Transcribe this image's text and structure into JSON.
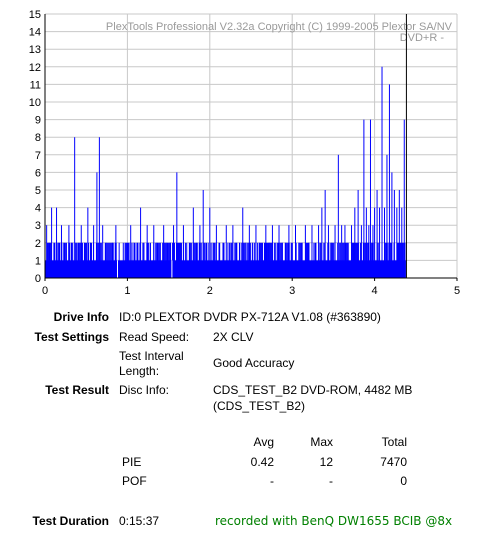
{
  "chart_data": {
    "type": "bar",
    "watermark_line1": "PlexTools Professional V2.32a Copyright (C) 1999-2005 Plextor SA/NV",
    "watermark_line2": "DVD+R  -",
    "xlim": [
      0,
      5
    ],
    "ylim": [
      0,
      15
    ],
    "x_ticks": [
      "0",
      "1",
      "2",
      "3",
      "4",
      "5"
    ],
    "y_ticks": [
      "0",
      "1",
      "2",
      "3",
      "4",
      "5",
      "6",
      "7",
      "8",
      "9",
      "10",
      "11",
      "12",
      "13",
      "14",
      "15"
    ],
    "grid": true,
    "bar_color": "#0000ff",
    "end_marker_x": 4.38,
    "data_end_x": 4.38,
    "base_level": 1,
    "spikes": [
      [
        0.02,
        3
      ],
      [
        0.05,
        2
      ],
      [
        0.08,
        4
      ],
      [
        0.11,
        2
      ],
      [
        0.14,
        4
      ],
      [
        0.17,
        2
      ],
      [
        0.2,
        3
      ],
      [
        0.23,
        2
      ],
      [
        0.26,
        2
      ],
      [
        0.29,
        3
      ],
      [
        0.32,
        2
      ],
      [
        0.36,
        8
      ],
      [
        0.4,
        2
      ],
      [
        0.44,
        3
      ],
      [
        0.48,
        2
      ],
      [
        0.52,
        4
      ],
      [
        0.55,
        2
      ],
      [
        0.59,
        3
      ],
      [
        0.63,
        6
      ],
      [
        0.66,
        8
      ],
      [
        0.7,
        3
      ],
      [
        0.74,
        2
      ],
      [
        0.78,
        2
      ],
      [
        0.82,
        2
      ],
      [
        0.86,
        3
      ],
      [
        0.9,
        2
      ],
      [
        0.95,
        2
      ],
      [
        1.0,
        2
      ],
      [
        1.04,
        3
      ],
      [
        1.08,
        2
      ],
      [
        1.12,
        2
      ],
      [
        1.16,
        4
      ],
      [
        1.2,
        2
      ],
      [
        1.24,
        3
      ],
      [
        1.28,
        2
      ],
      [
        1.32,
        3
      ],
      [
        1.36,
        2
      ],
      [
        1.4,
        2
      ],
      [
        1.44,
        3
      ],
      [
        1.48,
        2
      ],
      [
        1.52,
        2
      ],
      [
        1.56,
        3
      ],
      [
        1.6,
        6
      ],
      [
        1.64,
        2
      ],
      [
        1.68,
        3
      ],
      [
        1.72,
        2
      ],
      [
        1.76,
        2
      ],
      [
        1.8,
        4
      ],
      [
        1.84,
        2
      ],
      [
        1.88,
        3
      ],
      [
        1.92,
        5
      ],
      [
        1.96,
        2
      ],
      [
        2.0,
        4
      ],
      [
        2.04,
        2
      ],
      [
        2.08,
        3
      ],
      [
        2.12,
        2
      ],
      [
        2.16,
        2
      ],
      [
        2.2,
        3
      ],
      [
        2.24,
        2
      ],
      [
        2.28,
        3
      ],
      [
        2.32,
        2
      ],
      [
        2.36,
        2
      ],
      [
        2.4,
        4
      ],
      [
        2.44,
        2
      ],
      [
        2.48,
        3
      ],
      [
        2.52,
        2
      ],
      [
        2.56,
        3
      ],
      [
        2.6,
        2
      ],
      [
        2.64,
        2
      ],
      [
        2.68,
        3
      ],
      [
        2.72,
        2
      ],
      [
        2.76,
        3
      ],
      [
        2.8,
        2
      ],
      [
        2.84,
        3
      ],
      [
        2.88,
        2
      ],
      [
        2.92,
        2
      ],
      [
        2.96,
        3
      ],
      [
        3.0,
        2
      ],
      [
        3.04,
        3
      ],
      [
        3.08,
        2
      ],
      [
        3.12,
        2
      ],
      [
        3.16,
        3
      ],
      [
        3.2,
        2
      ],
      [
        3.24,
        3
      ],
      [
        3.28,
        2
      ],
      [
        3.32,
        3
      ],
      [
        3.36,
        4
      ],
      [
        3.4,
        5
      ],
      [
        3.44,
        3
      ],
      [
        3.48,
        2
      ],
      [
        3.52,
        3
      ],
      [
        3.56,
        7
      ],
      [
        3.6,
        3
      ],
      [
        3.64,
        3
      ],
      [
        3.68,
        2
      ],
      [
        3.72,
        3
      ],
      [
        3.76,
        4
      ],
      [
        3.8,
        5
      ],
      [
        3.84,
        3
      ],
      [
        3.87,
        9
      ],
      [
        3.9,
        4
      ],
      [
        3.93,
        3
      ],
      [
        3.95,
        9
      ],
      [
        3.98,
        3
      ],
      [
        4.0,
        4
      ],
      [
        4.03,
        5
      ],
      [
        4.06,
        4
      ],
      [
        4.09,
        12
      ],
      [
        4.12,
        4
      ],
      [
        4.15,
        7
      ],
      [
        4.18,
        11
      ],
      [
        4.21,
        6
      ],
      [
        4.24,
        5
      ],
      [
        4.27,
        4
      ],
      [
        4.3,
        5
      ],
      [
        4.33,
        4
      ],
      [
        4.36,
        9
      ]
    ]
  },
  "info": {
    "drive_info_label": "Drive Info",
    "drive_info_value": "ID:0 PLEXTOR DVDR PX-712A V1.08 (#363890)",
    "test_settings_label": "Test Settings",
    "read_speed_label": "Read Speed:",
    "read_speed_value": "2X CLV",
    "interval_label_1": "Test Interval",
    "interval_label_2": "Length:",
    "interval_value": "Good Accuracy",
    "test_result_label": "Test Result",
    "disc_info_label": "Disc Info:",
    "disc_info_value_1": "CDS_TEST_B2 DVD-ROM, 4482 MB",
    "disc_info_value_2": "(CDS_TEST_B2)"
  },
  "results": {
    "col_avg": "Avg",
    "col_max": "Max",
    "col_total": "Total",
    "pie_label": "PIE",
    "pie_avg": "0.42",
    "pie_max": "12",
    "pie_total": "7470",
    "pof_label": "POF",
    "pof_avg": "-",
    "pof_max": "-",
    "pof_total": "0"
  },
  "footer": {
    "duration_label": "Test Duration",
    "duration_value": "0:15:37",
    "recorded_with": "recorded with BenQ DW1655 BCIB @8x"
  }
}
